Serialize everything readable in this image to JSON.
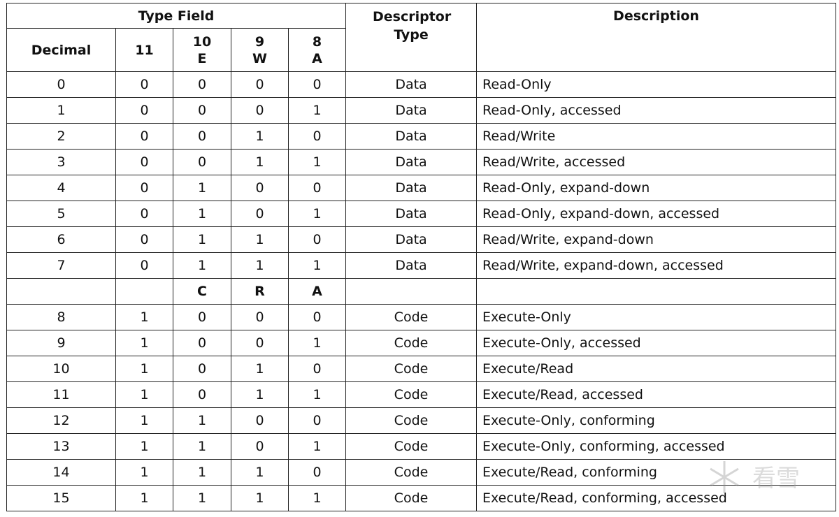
{
  "header": {
    "type_field": "Type Field",
    "descriptor_type": "Descriptor Type",
    "description": "Description",
    "decimal": "Decimal",
    "bit11": "11",
    "bit10": "10",
    "bit10_sub": "E",
    "bit9": "9",
    "bit9_sub": "W",
    "bit8": "8",
    "bit8_sub": "A"
  },
  "separator": {
    "c10": "C",
    "c9": "R",
    "c8": "A"
  },
  "data_rows": [
    {
      "dec": "0",
      "b11": "0",
      "b10": "0",
      "b9": "0",
      "b8": "0",
      "type": "Data",
      "desc": "Read-Only"
    },
    {
      "dec": "1",
      "b11": "0",
      "b10": "0",
      "b9": "0",
      "b8": "1",
      "type": "Data",
      "desc": "Read-Only, accessed"
    },
    {
      "dec": "2",
      "b11": "0",
      "b10": "0",
      "b9": "1",
      "b8": "0",
      "type": "Data",
      "desc": "Read/Write"
    },
    {
      "dec": "3",
      "b11": "0",
      "b10": "0",
      "b9": "1",
      "b8": "1",
      "type": "Data",
      "desc": "Read/Write, accessed"
    },
    {
      "dec": "4",
      "b11": "0",
      "b10": "1",
      "b9": "0",
      "b8": "0",
      "type": "Data",
      "desc": "Read-Only, expand-down"
    },
    {
      "dec": "5",
      "b11": "0",
      "b10": "1",
      "b9": "0",
      "b8": "1",
      "type": "Data",
      "desc": "Read-Only, expand-down, accessed"
    },
    {
      "dec": "6",
      "b11": "0",
      "b10": "1",
      "b9": "1",
      "b8": "0",
      "type": "Data",
      "desc": "Read/Write, expand-down"
    },
    {
      "dec": "7",
      "b11": "0",
      "b10": "1",
      "b9": "1",
      "b8": "1",
      "type": "Data",
      "desc": "Read/Write, expand-down, accessed"
    }
  ],
  "code_rows": [
    {
      "dec": "8",
      "b11": "1",
      "b10": "0",
      "b9": "0",
      "b8": "0",
      "type": "Code",
      "desc": "Execute-Only"
    },
    {
      "dec": "9",
      "b11": "1",
      "b10": "0",
      "b9": "0",
      "b8": "1",
      "type": "Code",
      "desc": "Execute-Only, accessed"
    },
    {
      "dec": "10",
      "b11": "1",
      "b10": "0",
      "b9": "1",
      "b8": "0",
      "type": "Code",
      "desc": "Execute/Read"
    },
    {
      "dec": "11",
      "b11": "1",
      "b10": "0",
      "b9": "1",
      "b8": "1",
      "type": "Code",
      "desc": "Execute/Read, accessed"
    },
    {
      "dec": "12",
      "b11": "1",
      "b10": "1",
      "b9": "0",
      "b8": "0",
      "type": "Code",
      "desc": "Execute-Only, conforming"
    },
    {
      "dec": "13",
      "b11": "1",
      "b10": "1",
      "b9": "0",
      "b8": "1",
      "type": "Code",
      "desc": "Execute-Only, conforming, accessed"
    },
    {
      "dec": "14",
      "b11": "1",
      "b10": "1",
      "b9": "1",
      "b8": "0",
      "type": "Code",
      "desc": "Execute/Read, conforming"
    },
    {
      "dec": "15",
      "b11": "1",
      "b10": "1",
      "b9": "1",
      "b8": "1",
      "type": "Code",
      "desc": "Execute/Read, conforming, accessed"
    }
  ],
  "watermark": {
    "icon": "snowflake-logo",
    "text": "看雪"
  }
}
